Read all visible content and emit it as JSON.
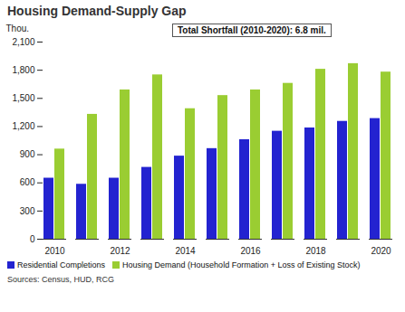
{
  "chart_data": {
    "type": "bar",
    "title": "Housing Demand-Supply Gap",
    "annotation": "Total Shortfall (2010-2020):  6.8 mil.",
    "y_label": "Thou.",
    "categories": [
      "2010",
      null,
      "2012",
      null,
      "2014",
      null,
      "2016",
      null,
      "2018",
      null,
      "2020"
    ],
    "series": [
      {
        "name": "Residential Completions",
        "color": "#2323d0",
        "values": [
          650,
          585,
          650,
          765,
          885,
          965,
          1060,
          1150,
          1185,
          1255,
          1285
        ]
      },
      {
        "name": "Housing Demand (Household Formation + Loss of Existing Stock)",
        "color": "#9acd32",
        "values": [
          960,
          1330,
          1590,
          1750,
          1390,
          1530,
          1590,
          1660,
          1810,
          1870,
          1780
        ]
      }
    ],
    "ylim": [
      0,
      2100
    ],
    "yticks": [
      0,
      300,
      600,
      900,
      {
        "value": 1200,
        "label": "1,200"
      },
      {
        "value": 1500,
        "label": "1,500"
      },
      {
        "value": 1800,
        "label": "1,800"
      },
      {
        "value": 2100,
        "label": "2,100"
      }
    ],
    "grid": false,
    "legend": "bottom",
    "source": "Sources: Census, HUD, RCG"
  }
}
